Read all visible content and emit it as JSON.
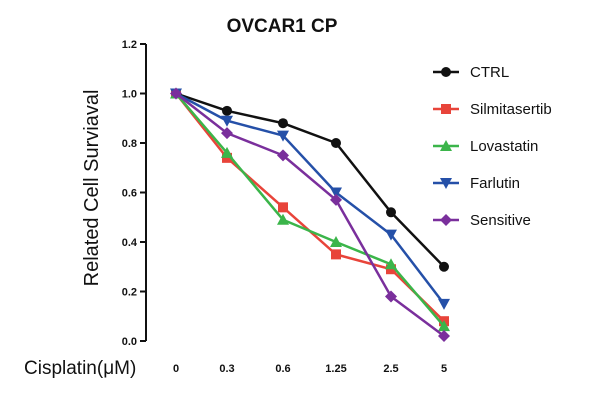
{
  "chart_data": {
    "type": "line",
    "title": "OVCAR1 CP",
    "xlabel": "Cisplatin(μM)",
    "ylabel": "Related Cell Surviaval",
    "categories": [
      "0",
      "0.3",
      "0.6",
      "1.25",
      "2.5",
      "5"
    ],
    "ylim": [
      0,
      1.2
    ],
    "yticks": [
      "0.0",
      "0.2",
      "0.4",
      "0.6",
      "0.8",
      "1.0",
      "1.2"
    ],
    "grid": false,
    "legend_position": "right",
    "series": [
      {
        "name": "CTRL",
        "color": "#111111",
        "marker": "circle",
        "values": [
          1.0,
          0.93,
          0.88,
          0.8,
          0.52,
          0.3
        ]
      },
      {
        "name": "Silmitasertib",
        "color": "#e8443a",
        "marker": "square",
        "values": [
          1.0,
          0.74,
          0.54,
          0.35,
          0.29,
          0.08
        ]
      },
      {
        "name": "Lovastatin",
        "color": "#3bb54a",
        "marker": "triangle-up",
        "values": [
          1.0,
          0.76,
          0.49,
          0.4,
          0.31,
          0.06
        ]
      },
      {
        "name": "Farlutin",
        "color": "#2550a8",
        "marker": "triangle-down",
        "values": [
          1.0,
          0.89,
          0.83,
          0.6,
          0.43,
          0.15
        ]
      },
      {
        "name": "Sensitive",
        "color": "#7a2f9c",
        "marker": "diamond",
        "values": [
          1.0,
          0.84,
          0.75,
          0.57,
          0.18,
          0.02
        ]
      }
    ]
  }
}
